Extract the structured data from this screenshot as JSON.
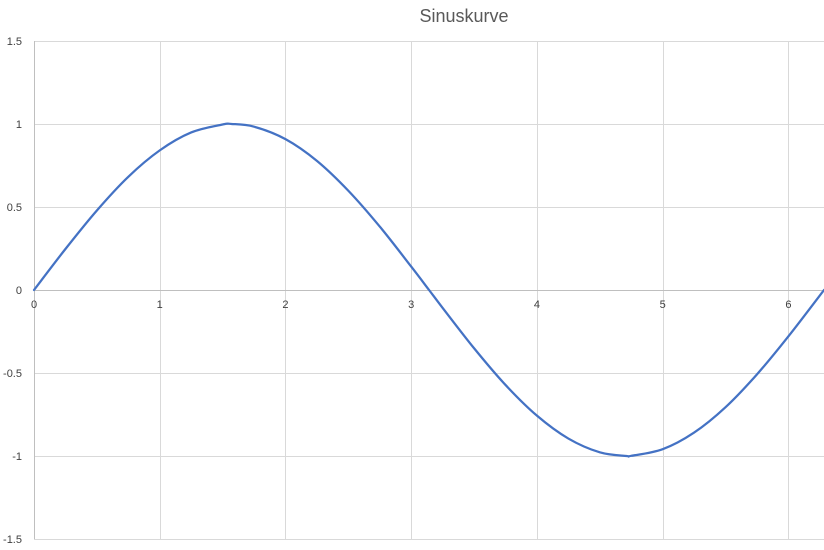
{
  "chart_data": {
    "type": "line",
    "title": "Sinuskurve",
    "xlabel": "",
    "ylabel": "",
    "xlim": [
      0,
      6.283
    ],
    "ylim": [
      -1.5,
      1.5
    ],
    "x_ticks": [
      0,
      1,
      2,
      3,
      4,
      5,
      6
    ],
    "y_ticks": [
      1.5,
      1,
      0.5,
      0,
      -0.5,
      -1,
      -1.5
    ],
    "x_tick_labels": [
      "0",
      "1",
      "2",
      "3",
      "4",
      "5",
      "6"
    ],
    "y_tick_labels": [
      "1.5",
      "1",
      "0.5",
      "0",
      "-0.5",
      "-1",
      "-1.5"
    ],
    "grid": true,
    "legend": "none",
    "series": [
      {
        "color": "#4472c4",
        "x": [
          0,
          0.25,
          0.5,
          0.75,
          1,
          1.25,
          1.5,
          1.571,
          1.75,
          2,
          2.25,
          2.5,
          2.75,
          3,
          3.142,
          3.25,
          3.5,
          3.75,
          4,
          4.25,
          4.5,
          4.712,
          4.75,
          5,
          5.25,
          5.5,
          5.75,
          6,
          6.283
        ],
        "y": [
          0,
          0.247,
          0.479,
          0.682,
          0.841,
          0.949,
          0.997,
          1,
          0.984,
          0.909,
          0.778,
          0.598,
          0.382,
          0.141,
          0,
          -0.108,
          -0.351,
          -0.572,
          -0.757,
          -0.895,
          -0.978,
          -1,
          -0.999,
          -0.959,
          -0.859,
          -0.706,
          -0.508,
          -0.279,
          0
        ]
      }
    ]
  }
}
